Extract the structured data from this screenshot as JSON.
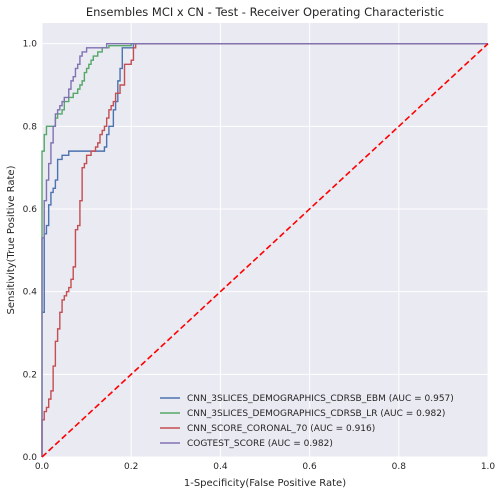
{
  "chart_data": {
    "type": "line",
    "title": "Ensembles MCI x CN - Test - Receiver Operating Characteristic",
    "xlabel": "1-Specificity(False Positive Rate)",
    "ylabel": "Sensitivity(True Positive Rate)",
    "xlim": [
      0,
      1
    ],
    "ylim": [
      0,
      1.05
    ],
    "xticks": [
      "0.0",
      "0.2",
      "0.4",
      "0.6",
      "0.8",
      "1.0"
    ],
    "yticks": [
      "0.0",
      "0.2",
      "0.4",
      "0.6",
      "0.8",
      "1.0"
    ],
    "grid": true,
    "legend_position": "lower-right",
    "background": "#eaeaf2",
    "series": [
      {
        "name": "CNN_3SLICES_DEMOGRAPHICS_CDRSB_EBM (AUC = 0.957)",
        "color": "#4c72b0",
        "x": [
          0,
          0.005,
          0.005,
          0.01,
          0.01,
          0.015,
          0.015,
          0.02,
          0.02,
          0.025,
          0.025,
          0.03,
          0.03,
          0.035,
          0.035,
          0.045,
          0.045,
          0.06,
          0.06,
          0.14,
          0.14,
          0.145,
          0.145,
          0.15,
          0.15,
          0.16,
          0.16,
          0.165,
          0.165,
          0.17,
          0.17,
          0.175,
          0.175,
          0.18,
          0.18,
          0.205,
          0.205,
          1
        ],
        "y": [
          0.35,
          0.35,
          0.54,
          0.54,
          0.56,
          0.56,
          0.61,
          0.61,
          0.64,
          0.64,
          0.65,
          0.65,
          0.67,
          0.67,
          0.72,
          0.72,
          0.73,
          0.73,
          0.74,
          0.74,
          0.75,
          0.75,
          0.78,
          0.78,
          0.8,
          0.8,
          0.84,
          0.84,
          0.86,
          0.86,
          0.91,
          0.91,
          0.94,
          0.94,
          0.99,
          0.99,
          1.0,
          1.0
        ]
      },
      {
        "name": "CNN_3SLICES_DEMOGRAPHICS_CDRSB_LR (AUC = 0.982)",
        "color": "#55a868",
        "x": [
          0,
          0,
          0.005,
          0.005,
          0.01,
          0.01,
          0.03,
          0.03,
          0.035,
          0.035,
          0.045,
          0.045,
          0.05,
          0.05,
          0.06,
          0.06,
          0.07,
          0.07,
          0.08,
          0.08,
          0.085,
          0.085,
          0.09,
          0.09,
          0.095,
          0.095,
          0.1,
          0.1,
          0.105,
          0.105,
          0.11,
          0.11,
          0.115,
          0.115,
          0.125,
          0.125,
          0.135,
          0.135,
          0.15,
          0.15,
          0.2,
          0.2,
          1
        ],
        "y": [
          0,
          0.74,
          0.74,
          0.78,
          0.78,
          0.8,
          0.8,
          0.82,
          0.82,
          0.83,
          0.83,
          0.84,
          0.84,
          0.86,
          0.86,
          0.87,
          0.87,
          0.88,
          0.88,
          0.89,
          0.89,
          0.9,
          0.9,
          0.91,
          0.91,
          0.93,
          0.93,
          0.94,
          0.94,
          0.95,
          0.95,
          0.96,
          0.96,
          0.97,
          0.97,
          0.98,
          0.98,
          0.99,
          0.99,
          0.995,
          0.995,
          1.0,
          1.0
        ]
      },
      {
        "name": "CNN_SCORE_CORONAL_70 (AUC = 0.916)",
        "color": "#c44e52",
        "x": [
          0,
          0,
          0.005,
          0.005,
          0.01,
          0.01,
          0.015,
          0.015,
          0.02,
          0.02,
          0.025,
          0.025,
          0.03,
          0.03,
          0.035,
          0.035,
          0.04,
          0.04,
          0.045,
          0.045,
          0.05,
          0.05,
          0.055,
          0.055,
          0.06,
          0.06,
          0.065,
          0.065,
          0.07,
          0.07,
          0.075,
          0.075,
          0.08,
          0.08,
          0.085,
          0.085,
          0.09,
          0.09,
          0.095,
          0.095,
          0.1,
          0.1,
          0.11,
          0.11,
          0.12,
          0.12,
          0.125,
          0.125,
          0.13,
          0.13,
          0.135,
          0.135,
          0.14,
          0.14,
          0.145,
          0.145,
          0.15,
          0.15,
          0.155,
          0.155,
          0.16,
          0.16,
          0.165,
          0.165,
          0.175,
          0.175,
          0.185,
          0.185,
          0.2,
          0.2,
          0.205,
          0.205,
          0.21,
          0.21,
          1
        ],
        "y": [
          0,
          0.09,
          0.09,
          0.11,
          0.11,
          0.12,
          0.12,
          0.14,
          0.14,
          0.16,
          0.16,
          0.22,
          0.22,
          0.28,
          0.28,
          0.31,
          0.31,
          0.35,
          0.35,
          0.38,
          0.38,
          0.39,
          0.39,
          0.4,
          0.4,
          0.41,
          0.41,
          0.43,
          0.43,
          0.46,
          0.46,
          0.55,
          0.55,
          0.56,
          0.56,
          0.62,
          0.62,
          0.7,
          0.7,
          0.71,
          0.71,
          0.73,
          0.73,
          0.74,
          0.74,
          0.75,
          0.75,
          0.76,
          0.76,
          0.78,
          0.78,
          0.79,
          0.79,
          0.8,
          0.8,
          0.82,
          0.82,
          0.84,
          0.84,
          0.85,
          0.85,
          0.86,
          0.86,
          0.88,
          0.88,
          0.9,
          0.9,
          0.95,
          0.95,
          0.96,
          0.96,
          0.99,
          0.99,
          1.0,
          1.0
        ]
      },
      {
        "name": "COGTEST_SCORE (AUC = 0.982)",
        "color": "#8172b2",
        "x": [
          0,
          0,
          0.005,
          0.005,
          0.01,
          0.01,
          0.015,
          0.015,
          0.02,
          0.02,
          0.025,
          0.025,
          0.03,
          0.03,
          0.035,
          0.035,
          0.04,
          0.04,
          0.045,
          0.045,
          0.05,
          0.05,
          0.06,
          0.06,
          0.065,
          0.065,
          0.07,
          0.07,
          0.075,
          0.075,
          0.08,
          0.08,
          0.085,
          0.085,
          0.09,
          0.09,
          0.1,
          0.1,
          0.145,
          0.145,
          1
        ],
        "y": [
          0,
          0.53,
          0.53,
          0.62,
          0.62,
          0.67,
          0.67,
          0.71,
          0.71,
          0.76,
          0.76,
          0.8,
          0.8,
          0.83,
          0.83,
          0.84,
          0.84,
          0.85,
          0.85,
          0.86,
          0.86,
          0.87,
          0.87,
          0.89,
          0.89,
          0.91,
          0.91,
          0.92,
          0.92,
          0.94,
          0.94,
          0.95,
          0.95,
          0.97,
          0.97,
          0.98,
          0.98,
          0.99,
          0.99,
          1.0,
          1.0
        ]
      },
      {
        "name": "",
        "color": "#ff0000",
        "dashed": true,
        "x": [
          0,
          1
        ],
        "y": [
          0,
          1
        ]
      }
    ]
  }
}
